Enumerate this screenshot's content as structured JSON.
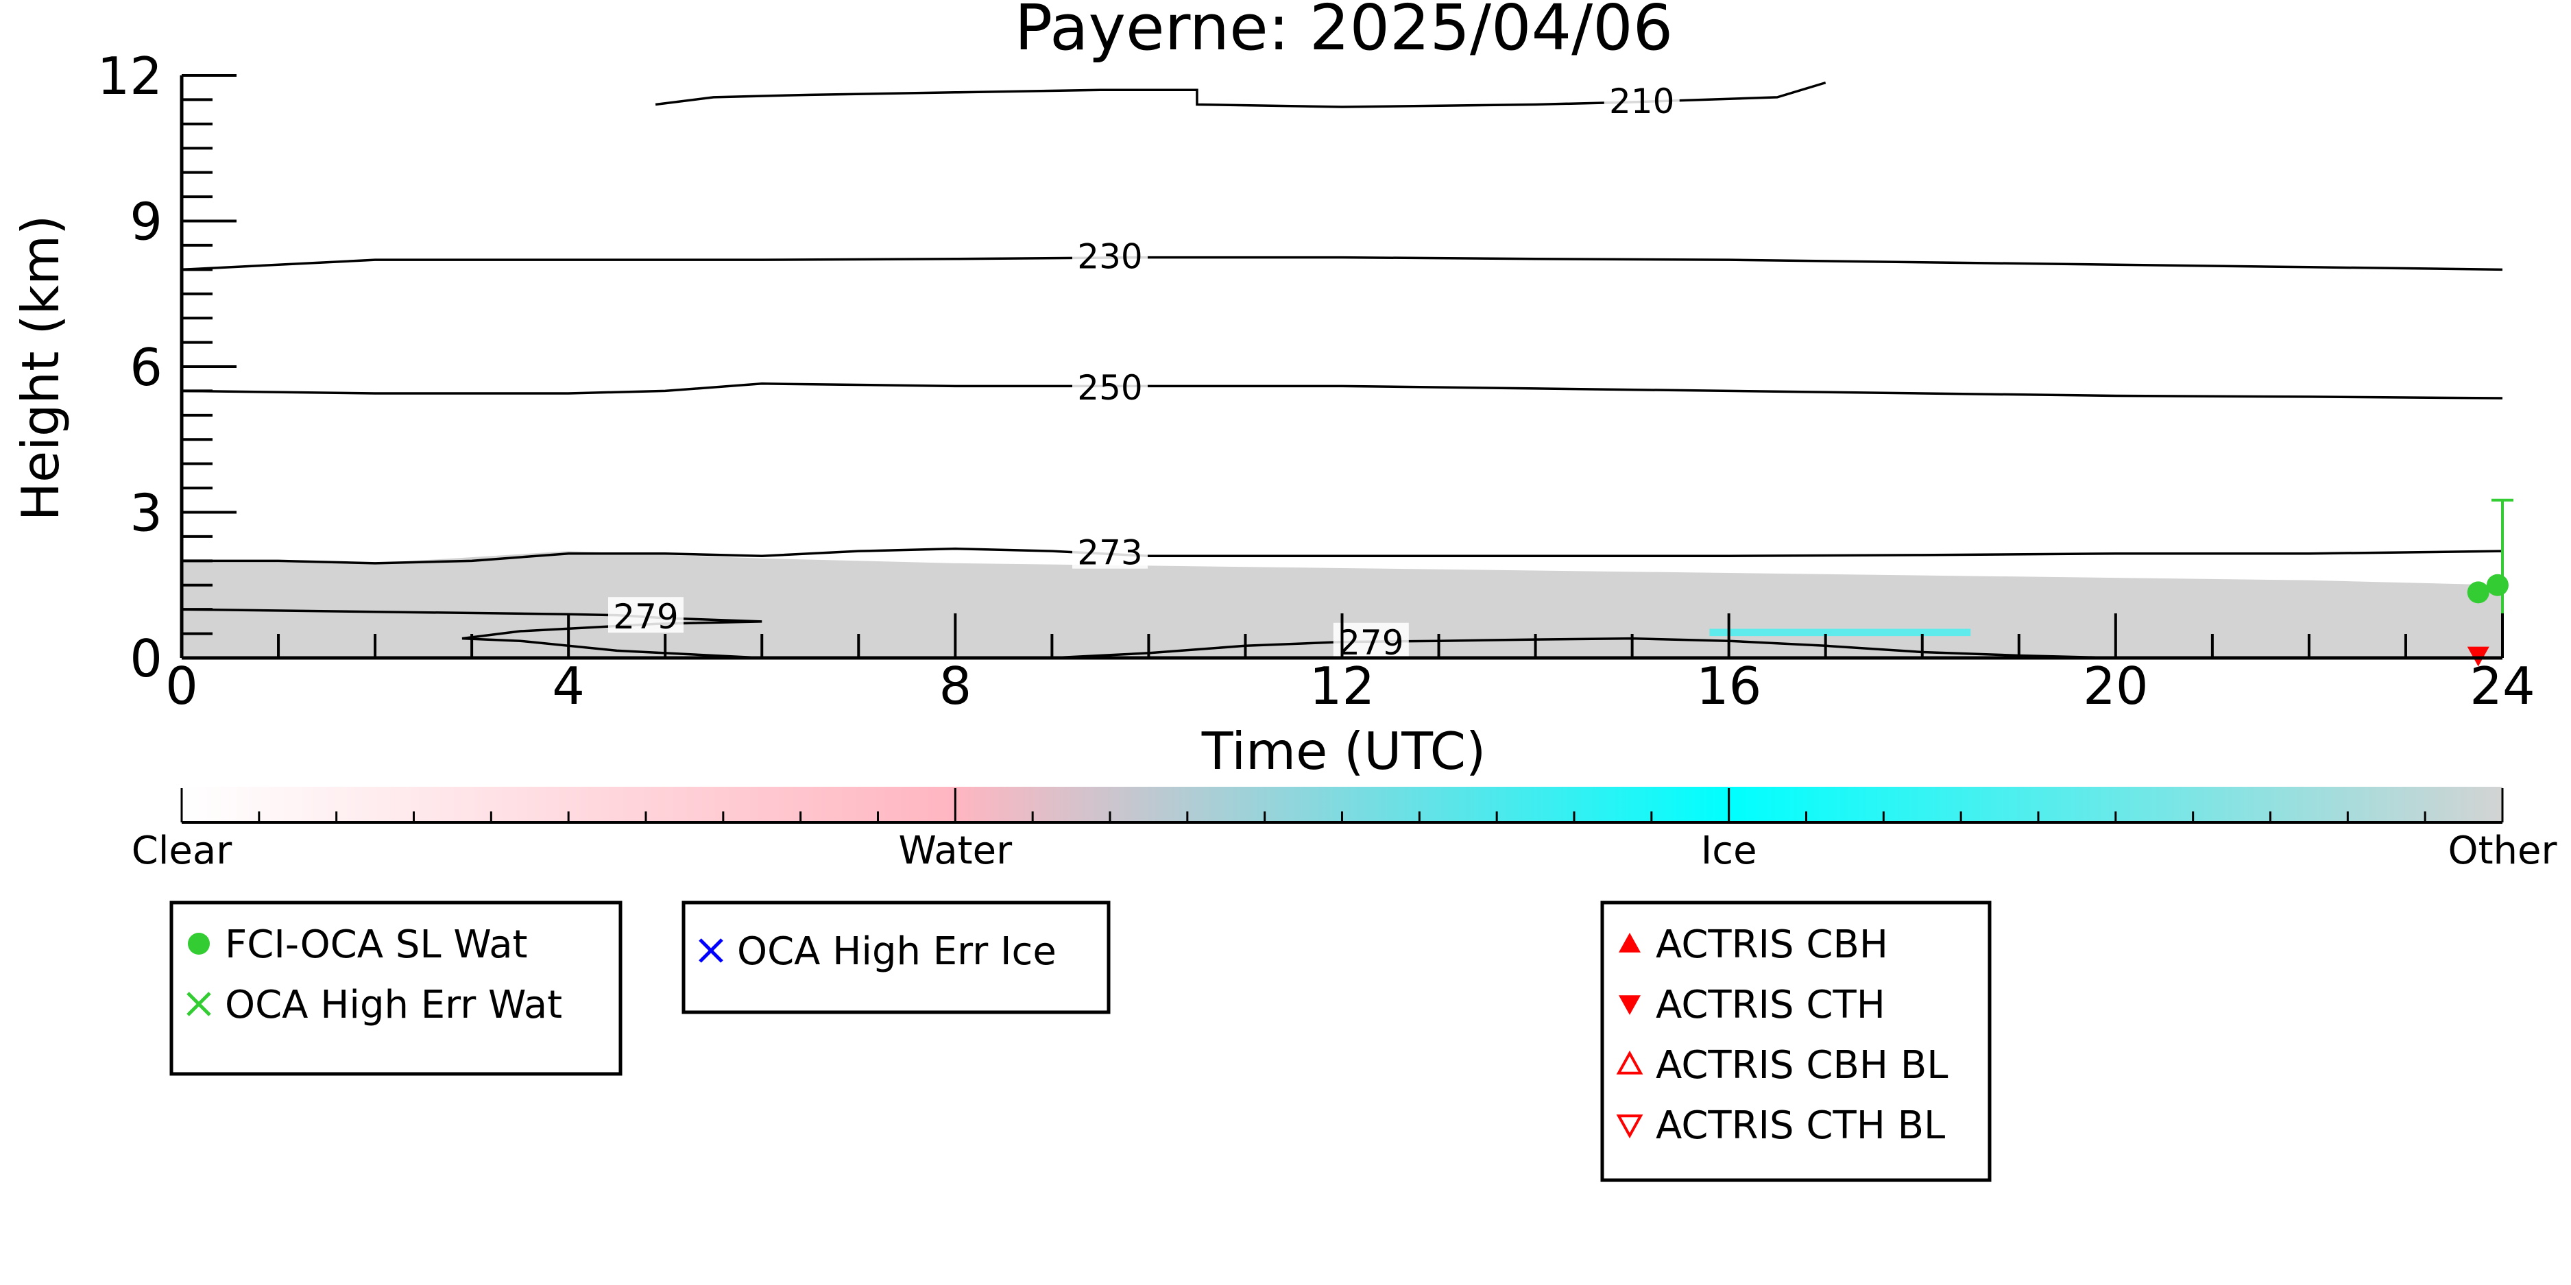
{
  "chart_data": {
    "type": "contour",
    "title": "Payerne: 2025/04/06",
    "xlabel": "Time (UTC)",
    "ylabel": "Height (km)",
    "xlim": [
      0,
      24
    ],
    "ylim": [
      0,
      12
    ],
    "x_ticks": [
      0,
      4,
      8,
      12,
      16,
      20,
      24
    ],
    "y_ticks": [
      0,
      3,
      6,
      9,
      12
    ],
    "cloud_layer": {
      "label": "Other",
      "color": "#d3d3d3",
      "top_km": [
        [
          0,
          2.0
        ],
        [
          2,
          1.95
        ],
        [
          4,
          2.2
        ],
        [
          6,
          2.05
        ],
        [
          8,
          1.95
        ],
        [
          10,
          1.9
        ],
        [
          12,
          1.85
        ],
        [
          14,
          1.8
        ],
        [
          16,
          1.75
        ],
        [
          18,
          1.7
        ],
        [
          20,
          1.65
        ],
        [
          22,
          1.6
        ],
        [
          24,
          1.5
        ]
      ]
    },
    "ice_patch": {
      "label": "Ice",
      "color": "#00ffff",
      "x_range": [
        15.8,
        18.5
      ],
      "y_range": [
        0.45,
        0.6
      ]
    },
    "contours": [
      {
        "label": "210",
        "label_at": [
          15.1,
          11.45
        ],
        "points": [
          [
            4.9,
            11.4
          ],
          [
            5.5,
            11.55
          ],
          [
            6.5,
            11.6
          ],
          [
            8,
            11.65
          ],
          [
            9.5,
            11.7
          ],
          [
            10.5,
            11.7
          ],
          [
            10.5,
            11.4
          ],
          [
            12,
            11.35
          ],
          [
            14,
            11.4
          ],
          [
            15,
            11.45
          ],
          [
            16.5,
            11.55
          ],
          [
            17,
            11.85
          ]
        ]
      },
      {
        "label": "230",
        "label_at": [
          9.6,
          8.25
        ],
        "points": [
          [
            0,
            8.0
          ],
          [
            2,
            8.2
          ],
          [
            4,
            8.2
          ],
          [
            6,
            8.2
          ],
          [
            8,
            8.22
          ],
          [
            10,
            8.25
          ],
          [
            12,
            8.25
          ],
          [
            14,
            8.22
          ],
          [
            16,
            8.2
          ],
          [
            18,
            8.15
          ],
          [
            20,
            8.1
          ],
          [
            22,
            8.05
          ],
          [
            24,
            8.0
          ]
        ]
      },
      {
        "label": "250",
        "label_at": [
          9.6,
          5.55
        ],
        "points": [
          [
            0,
            5.5
          ],
          [
            2,
            5.45
          ],
          [
            4,
            5.45
          ],
          [
            5,
            5.5
          ],
          [
            6,
            5.65
          ],
          [
            8,
            5.6
          ],
          [
            10,
            5.6
          ],
          [
            12,
            5.6
          ],
          [
            14,
            5.55
          ],
          [
            16,
            5.5
          ],
          [
            18,
            5.45
          ],
          [
            20,
            5.4
          ],
          [
            22,
            5.38
          ],
          [
            24,
            5.35
          ]
        ]
      },
      {
        "label": "273",
        "label_at": [
          9.6,
          2.15
        ],
        "points": [
          [
            0,
            2.0
          ],
          [
            1,
            2.0
          ],
          [
            2,
            1.95
          ],
          [
            3,
            2.0
          ],
          [
            4,
            2.15
          ],
          [
            5,
            2.15
          ],
          [
            6,
            2.1
          ],
          [
            7,
            2.2
          ],
          [
            8,
            2.25
          ],
          [
            9,
            2.2
          ],
          [
            10,
            2.1
          ],
          [
            12,
            2.1
          ],
          [
            14,
            2.1
          ],
          [
            16,
            2.1
          ],
          [
            18,
            2.12
          ],
          [
            20,
            2.15
          ],
          [
            22,
            2.15
          ],
          [
            24,
            2.2
          ]
        ]
      },
      {
        "label": "279",
        "label_at": [
          4.8,
          0.83
        ],
        "points": [
          [
            0,
            1.0
          ],
          [
            2,
            0.95
          ],
          [
            4,
            0.9
          ],
          [
            4.5,
            0.88
          ],
          [
            5,
            0.82
          ],
          [
            6,
            0.75
          ],
          [
            4.9,
            0.7
          ],
          [
            3.5,
            0.55
          ],
          [
            2.9,
            0.4
          ],
          [
            3.5,
            0.35
          ],
          [
            4.5,
            0.15
          ],
          [
            5.5,
            0.05
          ],
          [
            6,
            0.0
          ]
        ]
      },
      {
        "label": "279",
        "label_at": [
          12.3,
          0.3
        ],
        "points": [
          [
            9,
            0.0
          ],
          [
            10,
            0.1
          ],
          [
            11,
            0.25
          ],
          [
            12,
            0.33
          ],
          [
            13,
            0.35
          ],
          [
            14,
            0.38
          ],
          [
            15,
            0.4
          ],
          [
            16,
            0.35
          ],
          [
            17,
            0.25
          ],
          [
            18,
            0.12
          ],
          [
            19,
            0.05
          ],
          [
            20,
            0.0
          ]
        ]
      }
    ],
    "points": [
      {
        "series": "FCI-OCA SL Wat",
        "x": 23.75,
        "y": 1.35,
        "color": "#33cc33",
        "marker": "circle"
      },
      {
        "series": "FCI-OCA SL Wat",
        "x": 23.95,
        "y": 1.5,
        "color": "#33cc33",
        "marker": "circle"
      },
      {
        "series": "ACTRIS CTH",
        "x": 23.75,
        "y": 0.05,
        "color": "#ff0000",
        "marker": "triangle-down"
      }
    ],
    "error_bar": {
      "x": 24.0,
      "y_low": 0.0,
      "y_high": 3.25,
      "color": "#33cc33"
    },
    "colorbar": {
      "labels": [
        "Clear",
        "Water",
        "Ice",
        "Other"
      ],
      "colors": [
        "#ffffff",
        "#ffb6c1",
        "#00ffff",
        "#d3d3d3"
      ]
    },
    "legends": [
      {
        "entries": [
          {
            "label": "FCI-OCA SL Wat",
            "marker": "circle",
            "color": "#33cc33"
          },
          {
            "label": "OCA High Err Wat",
            "marker": "x",
            "color": "#33cc33"
          }
        ]
      },
      {
        "entries": [
          {
            "label": "OCA High Err Ice",
            "marker": "x",
            "color": "#0000ff"
          }
        ]
      },
      {
        "entries": [
          {
            "label": "ACTRIS CBH",
            "marker": "triangle-up",
            "color": "#ff0000"
          },
          {
            "label": "ACTRIS CTH",
            "marker": "triangle-down",
            "color": "#ff0000"
          },
          {
            "label": "ACTRIS CBH BL",
            "marker": "triangle-up-open",
            "color": "#ff0000"
          },
          {
            "label": "ACTRIS CTH BL",
            "marker": "triangle-down-open",
            "color": "#ff0000"
          }
        ]
      }
    ]
  }
}
